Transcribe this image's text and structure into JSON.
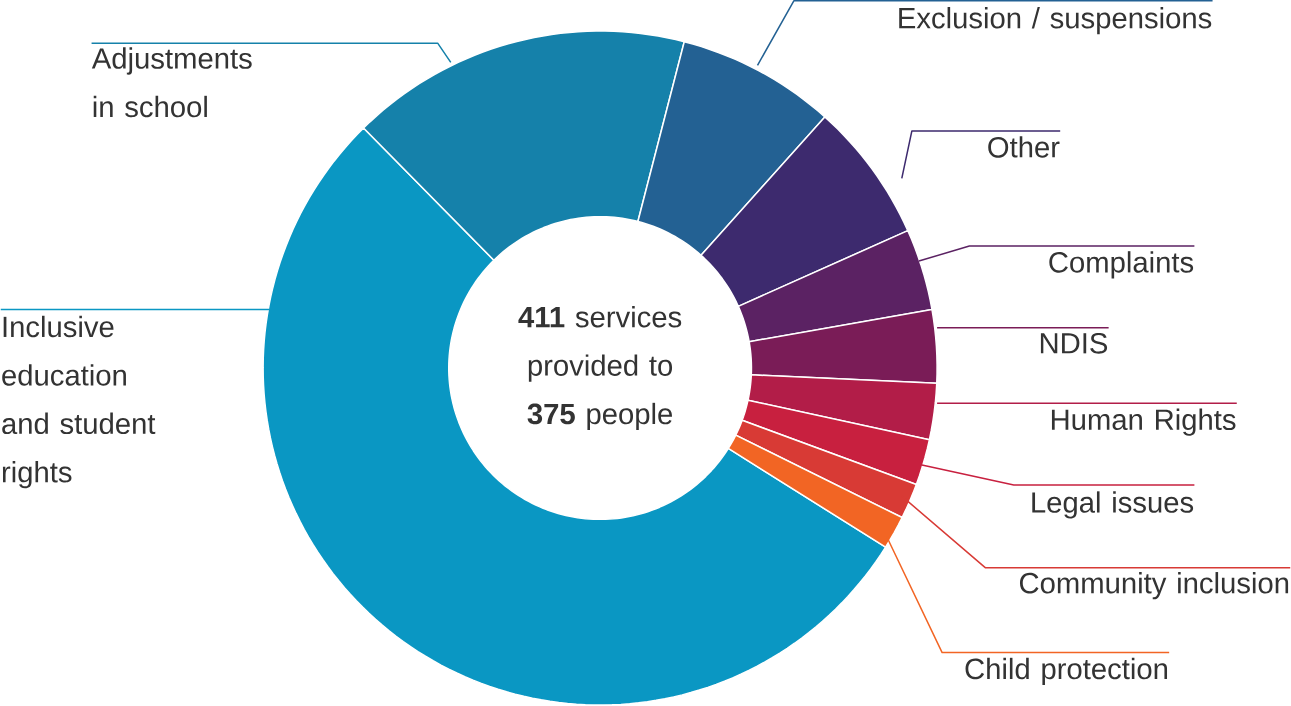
{
  "chart_data": {
    "type": "donut",
    "categories": [
      "Inclusive education and student rights",
      "Adjustments in school",
      "Exclusion / suspensions",
      "Other",
      "Complaints",
      "NDIS",
      "Human Rights",
      "Legal issues",
      "Community inclusion",
      "Child protection"
    ],
    "values": [
      53.7,
      16.4,
      7.6,
      6.7,
      3.9,
      3.5,
      2.7,
      2.2,
      1.7,
      1.6
    ],
    "colors": [
      "#0a97c3",
      "#1581aa",
      "#236193",
      "#3d2a6e",
      "#5b2263",
      "#7a1c57",
      "#b21d48",
      "#c8203f",
      "#d83a35",
      "#f26524"
    ],
    "annotations": [
      "**411** services provided to **375** people"
    ]
  }
}
